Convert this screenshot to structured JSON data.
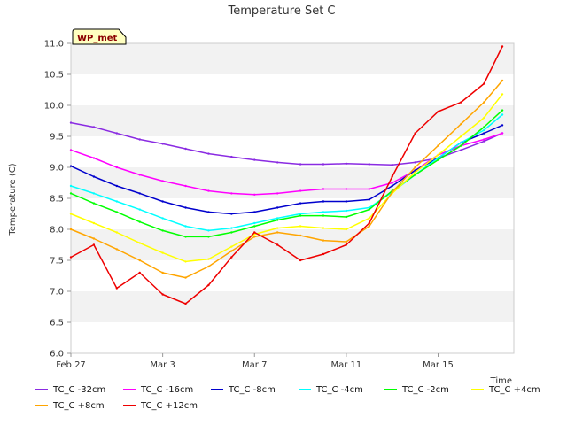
{
  "chart_data": {
    "type": "line",
    "title": "Temperature Set C",
    "xlabel": "Time",
    "ylabel": "Temperature (C)",
    "badge": "WP_met",
    "x_ticks": [
      "Feb 27",
      "Mar 3",
      "Mar 7",
      "Mar 11",
      "Mar 15"
    ],
    "y_ticks": [
      "6.0",
      "6.5",
      "7.0",
      "7.5",
      "8.0",
      "8.5",
      "9.0",
      "9.5",
      "10.0",
      "10.5",
      "11.0"
    ],
    "ylim": [
      6.0,
      11.0
    ],
    "xlim_days": [
      0,
      19.3
    ],
    "grid": "horizontal bands",
    "legend_position": "bottom",
    "x": [
      0,
      1,
      2,
      3,
      4,
      5,
      6,
      7,
      8,
      9,
      10,
      11,
      12,
      13,
      14,
      15,
      16,
      17,
      18,
      18.8
    ],
    "series": [
      {
        "name": "TC_C -32cm",
        "color": "#8a2be2",
        "values": [
          9.72,
          9.65,
          9.55,
          9.45,
          9.38,
          9.3,
          9.22,
          9.17,
          9.12,
          9.08,
          9.05,
          9.05,
          9.06,
          9.05,
          9.04,
          9.08,
          9.15,
          9.28,
          9.42,
          9.55
        ]
      },
      {
        "name": "TC_C -16cm",
        "color": "#ff00ff",
        "values": [
          9.28,
          9.15,
          9.0,
          8.88,
          8.78,
          8.7,
          8.62,
          8.58,
          8.56,
          8.58,
          8.62,
          8.65,
          8.65,
          8.65,
          8.75,
          8.95,
          9.2,
          9.35,
          9.45,
          9.55
        ]
      },
      {
        "name": "TC_C -8cm",
        "color": "#0000cd",
        "values": [
          9.02,
          8.85,
          8.7,
          8.58,
          8.45,
          8.35,
          8.28,
          8.25,
          8.28,
          8.35,
          8.42,
          8.45,
          8.45,
          8.48,
          8.7,
          8.95,
          9.15,
          9.4,
          9.55,
          9.68
        ]
      },
      {
        "name": "TC_C -4cm",
        "color": "#00ffff",
        "values": [
          8.7,
          8.58,
          8.45,
          8.32,
          8.18,
          8.05,
          7.98,
          8.02,
          8.1,
          8.18,
          8.25,
          8.28,
          8.3,
          8.35,
          8.6,
          8.88,
          9.15,
          9.4,
          9.6,
          9.85
        ]
      },
      {
        "name": "TC_C -2cm",
        "color": "#00ff00",
        "values": [
          8.58,
          8.42,
          8.28,
          8.12,
          7.98,
          7.88,
          7.88,
          7.95,
          8.05,
          8.15,
          8.22,
          8.22,
          8.2,
          8.32,
          8.62,
          8.88,
          9.12,
          9.35,
          9.65,
          9.92
        ]
      },
      {
        "name": "TC_C +4cm",
        "color": "#ffff00",
        "values": [
          8.25,
          8.1,
          7.95,
          7.78,
          7.62,
          7.48,
          7.52,
          7.72,
          7.92,
          8.02,
          8.05,
          8.02,
          8.0,
          8.18,
          8.58,
          8.92,
          9.2,
          9.5,
          9.8,
          10.18
        ]
      },
      {
        "name": "TC_C +8cm",
        "color": "#ffa500",
        "values": [
          8.0,
          7.85,
          7.68,
          7.5,
          7.3,
          7.22,
          7.4,
          7.65,
          7.88,
          7.95,
          7.9,
          7.82,
          7.8,
          8.05,
          8.6,
          9.0,
          9.35,
          9.7,
          10.05,
          10.4
        ]
      },
      {
        "name": "TC_C +12cm",
        "color": "#ee0000",
        "values": [
          7.55,
          7.75,
          7.05,
          7.3,
          6.95,
          6.8,
          7.1,
          7.55,
          7.95,
          7.75,
          7.5,
          7.6,
          7.75,
          8.1,
          8.85,
          9.55,
          9.9,
          10.05,
          10.35,
          10.95
        ]
      }
    ]
  }
}
